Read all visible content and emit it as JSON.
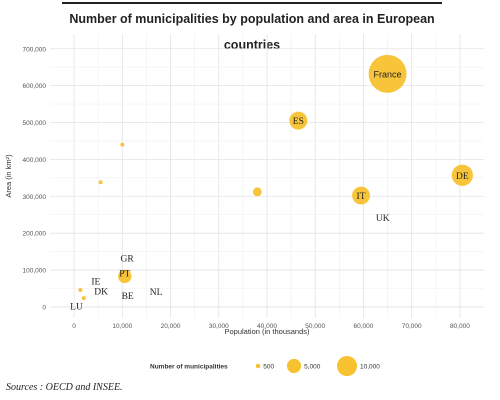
{
  "chart_data": {
    "type": "scatter",
    "title": "Number of municipalities by population and area in European countries",
    "xlabel": "Population (in thousands)",
    "ylabel": "Area (in km²)",
    "xlim": [
      -5000,
      85000
    ],
    "ylim": [
      -30000,
      740000
    ],
    "x_ticks": [
      0,
      10000,
      20000,
      30000,
      40000,
      50000,
      60000,
      70000,
      80000
    ],
    "x_tick_labels": [
      "0",
      "10,000",
      "20,000",
      "30,000",
      "40,000",
      "50,000",
      "60,000",
      "70,000",
      "80,000"
    ],
    "y_ticks": [
      0,
      100000,
      200000,
      300000,
      400000,
      500000,
      600000,
      700000
    ],
    "y_tick_labels": [
      "0",
      "100,000",
      "200,000",
      "300,000",
      "400,000",
      "500,000",
      "600,000",
      "700,000"
    ],
    "grid": true,
    "size_variable": "Number of municipalities",
    "points": [
      {
        "label": "France",
        "x": 65000,
        "y": 632000,
        "size": 36000,
        "label_color": "#222222"
      },
      {
        "label": "ES",
        "x": 46500,
        "y": 505000,
        "size": 8100,
        "label_color": "#222222"
      },
      {
        "label": "DE",
        "x": 80500,
        "y": 357000,
        "size": 11300,
        "label_color": "#222222"
      },
      {
        "label": "IT",
        "x": 59500,
        "y": 302000,
        "size": 8000,
        "label_color": "#222222"
      },
      {
        "label": "UK",
        "x": 64000,
        "y": 243000,
        "size": 0,
        "label_color": "#222222"
      },
      {
        "label": "",
        "x": 38000,
        "y": 312000,
        "size": 2000,
        "label_color": "#222222"
      },
      {
        "label": "",
        "x": 10000,
        "y": 440000,
        "size": 300,
        "label_color": "#222222"
      },
      {
        "label": "",
        "x": 5500,
        "y": 338000,
        "size": 300,
        "label_color": "#222222"
      },
      {
        "label": "GR",
        "x": 11000,
        "y": 132000,
        "size": 0,
        "label_color": "#222222"
      },
      {
        "label": "PT",
        "x": 10500,
        "y": 92000,
        "size": 300,
        "label_color": "#222222"
      },
      {
        "label": "",
        "x": 10500,
        "y": 83000,
        "size": 4500,
        "label_color": "#222222"
      },
      {
        "label": "IE",
        "x": 4500,
        "y": 70000,
        "size": 0,
        "label_color": "#222222"
      },
      {
        "label": "DK",
        "x": 5600,
        "y": 43000,
        "size": 0,
        "label_color": "#222222"
      },
      {
        "label": "",
        "x": 1300,
        "y": 46000,
        "size": 100,
        "label_color": "#222222"
      },
      {
        "label": "",
        "x": 2000,
        "y": 24000,
        "size": 100,
        "label_color": "#222222"
      },
      {
        "label": "BE",
        "x": 11100,
        "y": 31000,
        "size": 0,
        "label_color": "#222222"
      },
      {
        "label": "NL",
        "x": 17000,
        "y": 42000,
        "size": 0,
        "label_color": "#222222"
      },
      {
        "label": "LU",
        "x": 500,
        "y": 2600,
        "size": 0,
        "label_color": "#222222"
      }
    ],
    "legend": {
      "title": "Number of municipalities",
      "placement": "bottom",
      "items": [
        {
          "label": "500",
          "size": 500
        },
        {
          "label": "5,000",
          "size": 5000
        },
        {
          "label": "10,000",
          "size": 10000
        }
      ]
    },
    "colors": {
      "bubble": "#f7c12f",
      "grid": "#e3e3e3",
      "axis_text": "#555555"
    }
  },
  "source": "Sources : OECD and INSEE."
}
